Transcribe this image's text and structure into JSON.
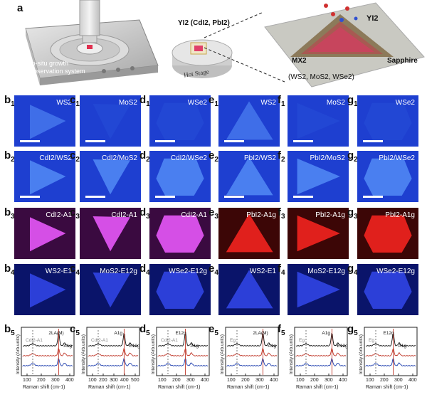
{
  "figure": {
    "panel_a": {
      "letter": "a",
      "apparatus_label_1": "In-situ growth",
      "apparatus_label_2": "observation system",
      "precursor_label": "YI2 (CdI2, PbI2)",
      "stage_label": "Hot Stage",
      "vapor_label": "YI2",
      "layer_label": "MX2",
      "substrate_label": "Sapphire",
      "materials_label": "(WS2, MoS2, WSe2)"
    },
    "rows": {
      "row1": [
        "WS2",
        "MoS2",
        "WSe2",
        "WS2",
        "MoS2",
        "WSe2"
      ],
      "row2": [
        "CdI2/WS2",
        "CdI2/MoS2",
        "CdI2/WSe2",
        "PbI2/WS2",
        "PbI2/MoS2",
        "PbI2/WSe2"
      ],
      "row3": [
        "CdI2-A1",
        "CdI2-A1",
        "CdI2-A1",
        "PbI2-A1g",
        "PbI2-A1g",
        "PbI2-A1g"
      ],
      "row4": [
        "WS2-E1",
        "MoS2-E12g",
        "WSe2-E12g",
        "WS2-E1",
        "MoS2-E12g",
        "WSe2-E12g"
      ]
    },
    "colors": {
      "blue_bg": "#1e3fd0",
      "blue_flake": "#4a7ff0",
      "magenta": "#d54fe6",
      "red": "#e0201c",
      "dark_blue": "#14209a"
    },
    "spectra": {
      "ylabel": "Intensity (Arb.units)",
      "xlabel": "Raman shift (cm",
      "xlabel_suffix": "-1",
      "xlabel_end": ")",
      "b5": {
        "ticks": [
          "100",
          "200",
          "300",
          "400"
        ],
        "peaks": [
          "2LA(M)",
          "A1g",
          "CdI2-A1"
        ]
      },
      "c5": {
        "ticks": [
          "100",
          "200",
          "300",
          "400",
          "500"
        ],
        "peaks": [
          "A1g",
          "E12g",
          "CdI2-A1"
        ]
      },
      "d5": {
        "ticks": [
          "100",
          "200",
          "300",
          "400"
        ],
        "peaks": [
          "E12g",
          "A1g",
          "CdI2-A1"
        ]
      },
      "e5": {
        "ticks": [
          "100",
          "200",
          "300",
          "400"
        ],
        "peaks": [
          "2LA(M)",
          "A1g",
          "Eg",
          "A1g"
        ]
      },
      "f5": {
        "ticks": [
          "100",
          "200",
          "300",
          "400"
        ],
        "peaks": [
          "A1g",
          "E12g",
          "Eg",
          "A1g",
          "2LA(M)"
        ]
      },
      "g5": {
        "ticks": [
          "100",
          "200",
          "300",
          "400"
        ],
        "peaks": [
          "E12g",
          "A1g",
          "Eg",
          "A1g",
          "2LA(M)"
        ]
      }
    }
  }
}
